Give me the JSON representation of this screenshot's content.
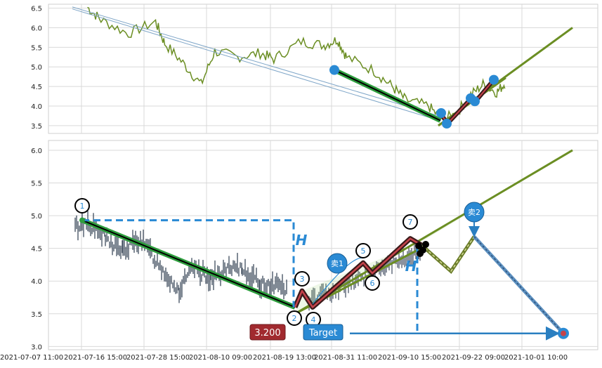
{
  "chart_data": [
    {
      "type": "line",
      "panel": "top",
      "ylim": [
        3.3,
        6.6
      ],
      "yticks": [
        "3.5",
        "4.0",
        "4.5",
        "5.0",
        "5.5",
        "6.0",
        "6.5"
      ],
      "grid": true,
      "price_color": "#6b8e23",
      "overlay": {
        "trend_start": [
          0,
          4.92
        ],
        "trend_end": [
          1.0,
          3.62
        ],
        "points": [
          [
            0.0,
            4.92
          ],
          [
            0.27,
            3.82
          ],
          [
            0.3,
            3.55
          ],
          [
            0.53,
            4.2
          ],
          [
            0.58,
            4.1
          ],
          [
            0.7,
            4.67
          ]
        ]
      }
    },
    {
      "type": "line",
      "panel": "bottom",
      "ylim": [
        2.95,
        6.15
      ],
      "yticks": [
        "3.0",
        "3.5",
        "4.0",
        "4.5",
        "5.0",
        "5.5",
        "6.0"
      ],
      "xticks": [
        "2021-07-07 11:00",
        "2021-07-16 15:00",
        "2021-07-28 15:00",
        "2021-08-10 09:00",
        "2021-08-19 13:00",
        "2021-08-31 11:00",
        "2021-09-10 15:00",
        "2021-09-22 09:00",
        "2021-10-01 10:00"
      ],
      "grid": true,
      "candle_color": "#3d4a5c",
      "pattern_points": [
        {
          "label": "1",
          "value": 4.93
        },
        {
          "label": "2",
          "value": 3.6
        },
        {
          "label": "3",
          "value": 3.85
        },
        {
          "label": "4",
          "value": 3.6
        },
        {
          "label": "5",
          "value": 4.28
        },
        {
          "label": "6",
          "value": 4.12
        },
        {
          "label": "7",
          "value": 4.65
        }
      ],
      "sell_labels": [
        "卖1",
        "卖2"
      ],
      "height_label": "H",
      "target_label": "Target",
      "target_price": "3.200",
      "target_value": 3.2
    }
  ]
}
